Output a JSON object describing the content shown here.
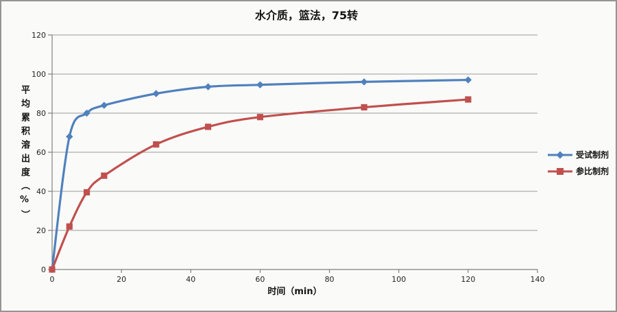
{
  "title": "水介质，篮法，75转",
  "colors": {
    "series_test": "#4F81BD",
    "series_reference": "#C0504D",
    "gridline": "#999999",
    "axis": "#7F7F7F",
    "tick_text": "#1F1F1F",
    "background": "#FAFAF9",
    "frame_border": "#949494"
  },
  "x_axis": {
    "title": "时间（min）",
    "min": 0,
    "max": 140,
    "ticks": [
      0,
      20,
      40,
      60,
      80,
      100,
      120,
      140
    ]
  },
  "y_axis": {
    "title": "平均累积溶出度（%）",
    "min": 0,
    "max": 120,
    "ticks": [
      0,
      20,
      40,
      60,
      80,
      100,
      120
    ]
  },
  "legend": {
    "entries": [
      {
        "label": "受试制剂",
        "marker_icon": "diamond-marker-icon",
        "color": "#4F81BD"
      },
      {
        "label": "参比制剂",
        "marker_icon": "square-marker-icon",
        "color": "#C0504D"
      }
    ]
  },
  "chart_data": {
    "type": "line",
    "title": "水介质，篮法，75转",
    "xlabel": "时间（min）",
    "ylabel": "平均累积溶出度（%）",
    "x": [
      0,
      5,
      10,
      15,
      30,
      45,
      60,
      90,
      120
    ],
    "series": [
      {
        "name": "受试制剂",
        "marker": "diamond",
        "color": "#4F81BD",
        "values": [
          0,
          68,
          80,
          84,
          90,
          93.5,
          94.5,
          96,
          97
        ]
      },
      {
        "name": "参比制剂",
        "marker": "square",
        "color": "#C0504D",
        "values": [
          0,
          22,
          39.5,
          48,
          64,
          73,
          78,
          83,
          87
        ]
      }
    ],
    "xlim": [
      0,
      140
    ],
    "ylim": [
      0,
      120
    ],
    "grid": "horizontal",
    "smooth": true,
    "legend_position": "right"
  }
}
